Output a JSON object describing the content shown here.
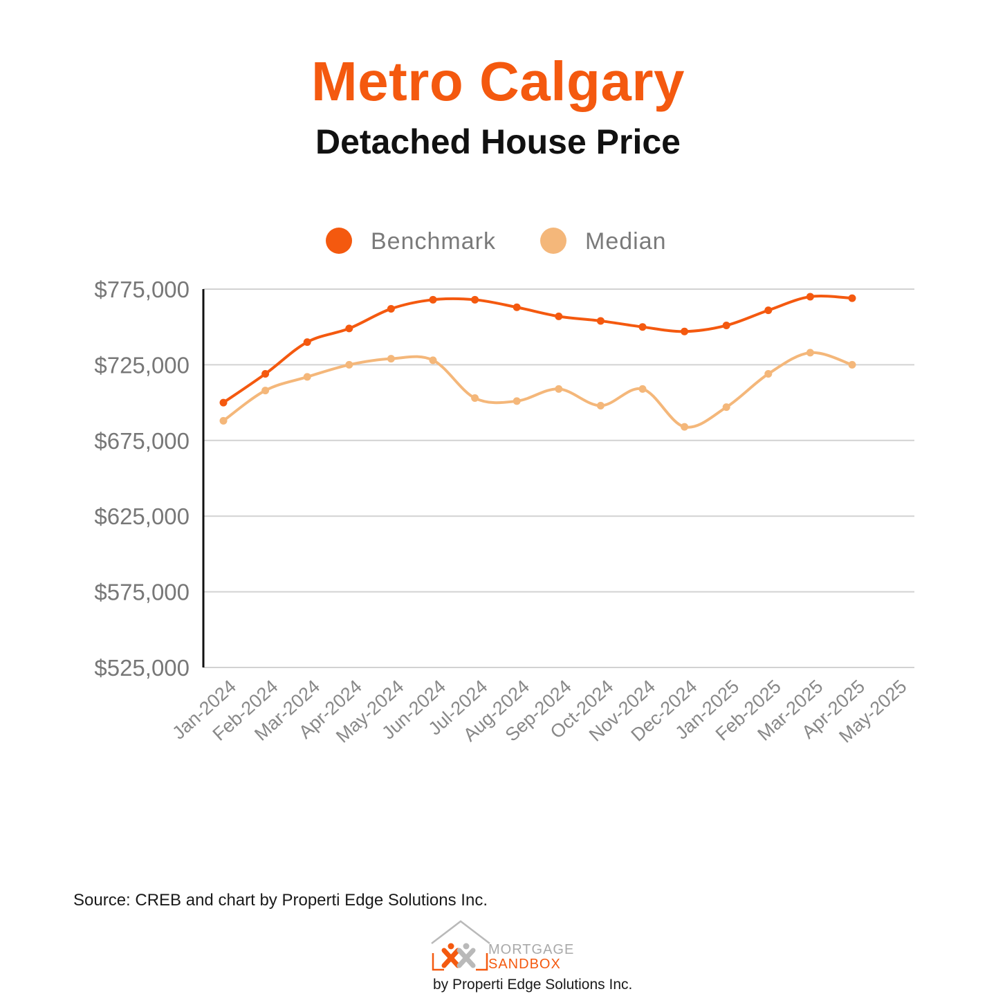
{
  "header": {
    "title": "Metro Calgary",
    "subtitle": "Detached House Price"
  },
  "chart_data": {
    "type": "line",
    "categories": [
      "Jan-2024",
      "Feb-2024",
      "Mar-2024",
      "Apr-2024",
      "May-2024",
      "Jun-2024",
      "Jul-2024",
      "Aug-2024",
      "Sep-2024",
      "Oct-2024",
      "Nov-2024",
      "Dec-2024",
      "Jan-2025",
      "Feb-2025",
      "Mar-2025",
      "Apr-2025",
      "May-2025"
    ],
    "series": [
      {
        "name": "Benchmark",
        "color": "#f4590f",
        "values": [
          700000,
          719000,
          740000,
          749000,
          762000,
          768000,
          768000,
          763000,
          757000,
          754000,
          750000,
          747000,
          751000,
          761000,
          770000,
          769000,
          null
        ]
      },
      {
        "name": "Median",
        "color": "#f4b77a",
        "values": [
          688000,
          708000,
          717000,
          725000,
          729000,
          728000,
          703000,
          701000,
          709000,
          698000,
          709000,
          684000,
          697000,
          719000,
          733000,
          725000,
          null
        ]
      }
    ],
    "yticks": [
      "$775,000",
      "$725,000",
      "$675,000",
      "$625,000",
      "$575,000",
      "$525,000"
    ],
    "ylim": [
      525000,
      775000
    ],
    "xlabel": "",
    "ylabel": "",
    "grid": true,
    "legend": "top-center"
  },
  "footer": {
    "source": "Source: CREB and chart by Properti Edge Solutions Inc.",
    "logo_line1": "MORTGAGE",
    "logo_line2": "SANDBOX",
    "logo_by": "by Properti Edge Solutions Inc."
  }
}
